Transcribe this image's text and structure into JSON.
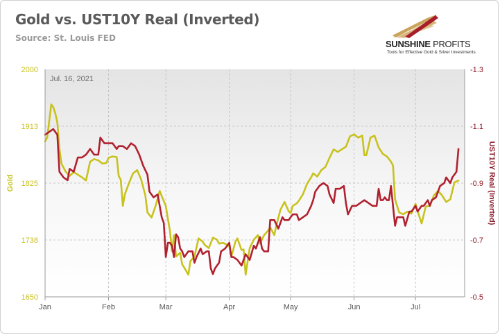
{
  "header": {
    "title": "Gold vs. UST10Y Real (Inverted)",
    "source": "Source: St. Louis FED"
  },
  "brand": {
    "name_bold": "SUNSHINE",
    "name_light": " PROFITS",
    "tagline": "Tools for Effective Gold & Silver Investments"
  },
  "colors": {
    "gold": "#c8c21e",
    "real_yield": "#b0212f",
    "gold_axis": "#c8c21e",
    "yield_axis": "#8b1a28"
  },
  "chart_data": {
    "type": "line",
    "annotation": "Jul. 16, 2021",
    "left_axis_label": "Gold",
    "right_axis_label": "UST10Y Real (Inverted)",
    "x_ticks": [
      "Jan",
      "Feb",
      "Mar",
      "Apr",
      "May",
      "Jun",
      "Jul"
    ],
    "x_tick_days": [
      0,
      31,
      59,
      90,
      120,
      151,
      181
    ],
    "xlim_days": [
      0,
      205
    ],
    "left_ticks": [
      "2000",
      "1913",
      "1825",
      "1738",
      "1650"
    ],
    "left_range": [
      1650,
      2000
    ],
    "right_ticks": [
      "-1.3",
      "-1.1",
      "-0.9",
      "-0.7",
      "-0.5"
    ],
    "right_range": [
      -1.3,
      -0.5
    ],
    "right_inverted": true,
    "grid": true,
    "series": [
      {
        "name": "Gold",
        "axis": "left",
        "points": [
          [
            0,
            1889
          ],
          [
            1,
            1895
          ],
          [
            2,
            1920
          ],
          [
            3,
            1946
          ],
          [
            4,
            1942
          ],
          [
            5,
            1932
          ],
          [
            6,
            1918
          ],
          [
            7,
            1878
          ],
          [
            8,
            1855
          ],
          [
            10,
            1843
          ],
          [
            12,
            1836
          ],
          [
            14,
            1842
          ],
          [
            16,
            1838
          ],
          [
            18,
            1834
          ],
          [
            20,
            1829
          ],
          [
            22,
            1858
          ],
          [
            24,
            1862
          ],
          [
            26,
            1860
          ],
          [
            28,
            1855
          ],
          [
            30,
            1856
          ],
          [
            31,
            1864
          ],
          [
            33,
            1866
          ],
          [
            35,
            1865
          ],
          [
            36,
            1836
          ],
          [
            37,
            1830
          ],
          [
            38,
            1790
          ],
          [
            39,
            1808
          ],
          [
            41,
            1825
          ],
          [
            43,
            1840
          ],
          [
            45,
            1845
          ],
          [
            47,
            1830
          ],
          [
            49,
            1806
          ],
          [
            50,
            1780
          ],
          [
            52,
            1772
          ],
          [
            54,
            1790
          ],
          [
            56,
            1813
          ],
          [
            57,
            1805
          ],
          [
            59,
            1790
          ],
          [
            60,
            1770
          ],
          [
            61,
            1752
          ],
          [
            62,
            1720
          ],
          [
            63,
            1745
          ],
          [
            64,
            1712
          ],
          [
            66,
            1718
          ],
          [
            67,
            1700
          ],
          [
            68,
            1695
          ],
          [
            70,
            1684
          ],
          [
            71,
            1705
          ],
          [
            73,
            1712
          ],
          [
            75,
            1740
          ],
          [
            77,
            1735
          ],
          [
            78,
            1730
          ],
          [
            80,
            1725
          ],
          [
            82,
            1741
          ],
          [
            84,
            1738
          ],
          [
            85,
            1732
          ],
          [
            87,
            1733
          ],
          [
            89,
            1730
          ],
          [
            90,
            1728
          ],
          [
            91,
            1712
          ],
          [
            93,
            1735
          ],
          [
            94,
            1740
          ],
          [
            96,
            1722
          ],
          [
            97,
            1723
          ],
          [
            98,
            1684
          ],
          [
            100,
            1725
          ],
          [
            102,
            1738
          ],
          [
            104,
            1745
          ],
          [
            105,
            1732
          ],
          [
            107,
            1745
          ],
          [
            109,
            1752
          ],
          [
            110,
            1757
          ],
          [
            112,
            1745
          ],
          [
            113,
            1760
          ],
          [
            115,
            1784
          ],
          [
            117,
            1796
          ],
          [
            119,
            1782
          ],
          [
            120,
            1779
          ],
          [
            121,
            1790
          ],
          [
            123,
            1794
          ],
          [
            124,
            1798
          ],
          [
            126,
            1808
          ],
          [
            128,
            1824
          ],
          [
            130,
            1834
          ],
          [
            131,
            1840
          ],
          [
            133,
            1835
          ],
          [
            135,
            1845
          ],
          [
            137,
            1850
          ],
          [
            139,
            1864
          ],
          [
            141,
            1877
          ],
          [
            143,
            1873
          ],
          [
            145,
            1877
          ],
          [
            147,
            1881
          ],
          [
            149,
            1897
          ],
          [
            151,
            1900
          ],
          [
            153,
            1895
          ],
          [
            155,
            1898
          ],
          [
            156,
            1868
          ],
          [
            157,
            1868
          ],
          [
            159,
            1895
          ],
          [
            161,
            1898
          ],
          [
            163,
            1880
          ],
          [
            165,
            1870
          ],
          [
            167,
            1866
          ],
          [
            169,
            1858
          ],
          [
            170,
            1852
          ],
          [
            171,
            1800
          ],
          [
            172,
            1790
          ],
          [
            173,
            1780
          ],
          [
            175,
            1777
          ],
          [
            177,
            1781
          ],
          [
            179,
            1778
          ],
          [
            181,
            1793
          ],
          [
            182,
            1782
          ],
          [
            184,
            1763
          ],
          [
            186,
            1789
          ],
          [
            188,
            1790
          ],
          [
            190,
            1806
          ],
          [
            192,
            1813
          ],
          [
            194,
            1806
          ],
          [
            196,
            1796
          ],
          [
            198,
            1800
          ],
          [
            200,
            1826
          ],
          [
            202,
            1829
          ]
        ]
      },
      {
        "name": "UST10Y Real (Inverted)",
        "axis": "right",
        "points": [
          [
            0,
            -1.07
          ],
          [
            2,
            -1.08
          ],
          [
            4,
            -1.09
          ],
          [
            6,
            -1.07
          ],
          [
            7,
            -0.94
          ],
          [
            9,
            -0.92
          ],
          [
            11,
            -0.91
          ],
          [
            12,
            -0.95
          ],
          [
            14,
            -0.94
          ],
          [
            16,
            -0.99
          ],
          [
            18,
            -0.99
          ],
          [
            20,
            -1.0
          ],
          [
            22,
            -1.02
          ],
          [
            24,
            -1.0
          ],
          [
            26,
            -1.0
          ],
          [
            27,
            -1.06
          ],
          [
            29,
            -1.04
          ],
          [
            31,
            -1.04
          ],
          [
            33,
            -1.04
          ],
          [
            35,
            -1.02
          ],
          [
            36,
            -1.03
          ],
          [
            38,
            -1.03
          ],
          [
            40,
            -1.02
          ],
          [
            42,
            -1.04
          ],
          [
            44,
            -1.03
          ],
          [
            46,
            -1.0
          ],
          [
            48,
            -0.96
          ],
          [
            50,
            -0.93
          ],
          [
            51,
            -0.87
          ],
          [
            53,
            -0.85
          ],
          [
            55,
            -0.86
          ],
          [
            56,
            -0.82
          ],
          [
            57,
            -0.78
          ],
          [
            58,
            -0.76
          ],
          [
            59,
            -0.64
          ],
          [
            60,
            -0.69
          ],
          [
            61,
            -0.69
          ],
          [
            62,
            -0.68
          ],
          [
            63,
            -0.64
          ],
          [
            64,
            -0.72
          ],
          [
            65,
            -0.71
          ],
          [
            66,
            -0.67
          ],
          [
            67,
            -0.66
          ],
          [
            68,
            -0.64
          ],
          [
            70,
            -0.66
          ],
          [
            72,
            -0.66
          ],
          [
            73,
            -0.62
          ],
          [
            74,
            -0.64
          ],
          [
            76,
            -0.67
          ],
          [
            77,
            -0.65
          ],
          [
            79,
            -0.66
          ],
          [
            80,
            -0.66
          ],
          [
            81,
            -0.6
          ],
          [
            82,
            -0.58
          ],
          [
            83,
            -0.6
          ],
          [
            85,
            -0.62
          ],
          [
            86,
            -0.66
          ],
          [
            88,
            -0.67
          ],
          [
            90,
            -0.69
          ],
          [
            91,
            -0.64
          ],
          [
            92,
            -0.64
          ],
          [
            94,
            -0.63
          ],
          [
            96,
            -0.61
          ],
          [
            97,
            -0.63
          ],
          [
            98,
            -0.65
          ],
          [
            100,
            -0.63
          ],
          [
            102,
            -0.68
          ],
          [
            103,
            -0.67
          ],
          [
            105,
            -0.71
          ],
          [
            106,
            -0.67
          ],
          [
            107,
            -0.66
          ],
          [
            109,
            -0.66
          ],
          [
            110,
            -0.77
          ],
          [
            112,
            -0.77
          ],
          [
            114,
            -0.74
          ],
          [
            116,
            -0.78
          ],
          [
            117,
            -0.77
          ],
          [
            119,
            -0.77
          ],
          [
            121,
            -0.79
          ],
          [
            123,
            -0.79
          ],
          [
            124,
            -0.77
          ],
          [
            126,
            -0.78
          ],
          [
            128,
            -0.79
          ],
          [
            130,
            -0.82
          ],
          [
            131,
            -0.84
          ],
          [
            132,
            -0.87
          ],
          [
            134,
            -0.89
          ],
          [
            136,
            -0.9
          ],
          [
            138,
            -0.89
          ],
          [
            139,
            -0.86
          ],
          [
            141,
            -0.83
          ],
          [
            142,
            -0.88
          ],
          [
            144,
            -0.88
          ],
          [
            146,
            -0.89
          ],
          [
            147,
            -0.83
          ],
          [
            148,
            -0.79
          ],
          [
            150,
            -0.82
          ],
          [
            152,
            -0.82
          ],
          [
            154,
            -0.83
          ],
          [
            156,
            -0.84
          ],
          [
            158,
            -0.83
          ],
          [
            160,
            -0.82
          ],
          [
            162,
            -0.82
          ],
          [
            163,
            -0.88
          ],
          [
            164,
            -0.84
          ],
          [
            165,
            -0.84
          ],
          [
            166,
            -0.85
          ],
          [
            167,
            -0.84
          ],
          [
            168,
            -0.84
          ],
          [
            169,
            -0.89
          ],
          [
            170,
            -0.82
          ],
          [
            171,
            -0.75
          ],
          [
            172,
            -0.78
          ],
          [
            173,
            -0.78
          ],
          [
            175,
            -0.78
          ],
          [
            176,
            -0.75
          ],
          [
            178,
            -0.8
          ],
          [
            179,
            -0.8
          ],
          [
            181,
            -0.82
          ],
          [
            182,
            -0.8
          ],
          [
            184,
            -0.82
          ],
          [
            185,
            -0.82
          ],
          [
            187,
            -0.84
          ],
          [
            188,
            -0.82
          ],
          [
            189,
            -0.84
          ],
          [
            191,
            -0.85
          ],
          [
            192,
            -0.87
          ],
          [
            193,
            -0.89
          ],
          [
            195,
            -0.9
          ],
          [
            196,
            -0.92
          ],
          [
            197,
            -0.91
          ],
          [
            198,
            -0.9
          ],
          [
            199,
            -0.92
          ],
          [
            200,
            -0.93
          ],
          [
            201,
            -0.94
          ],
          [
            202,
            -1.02
          ]
        ]
      }
    ]
  }
}
